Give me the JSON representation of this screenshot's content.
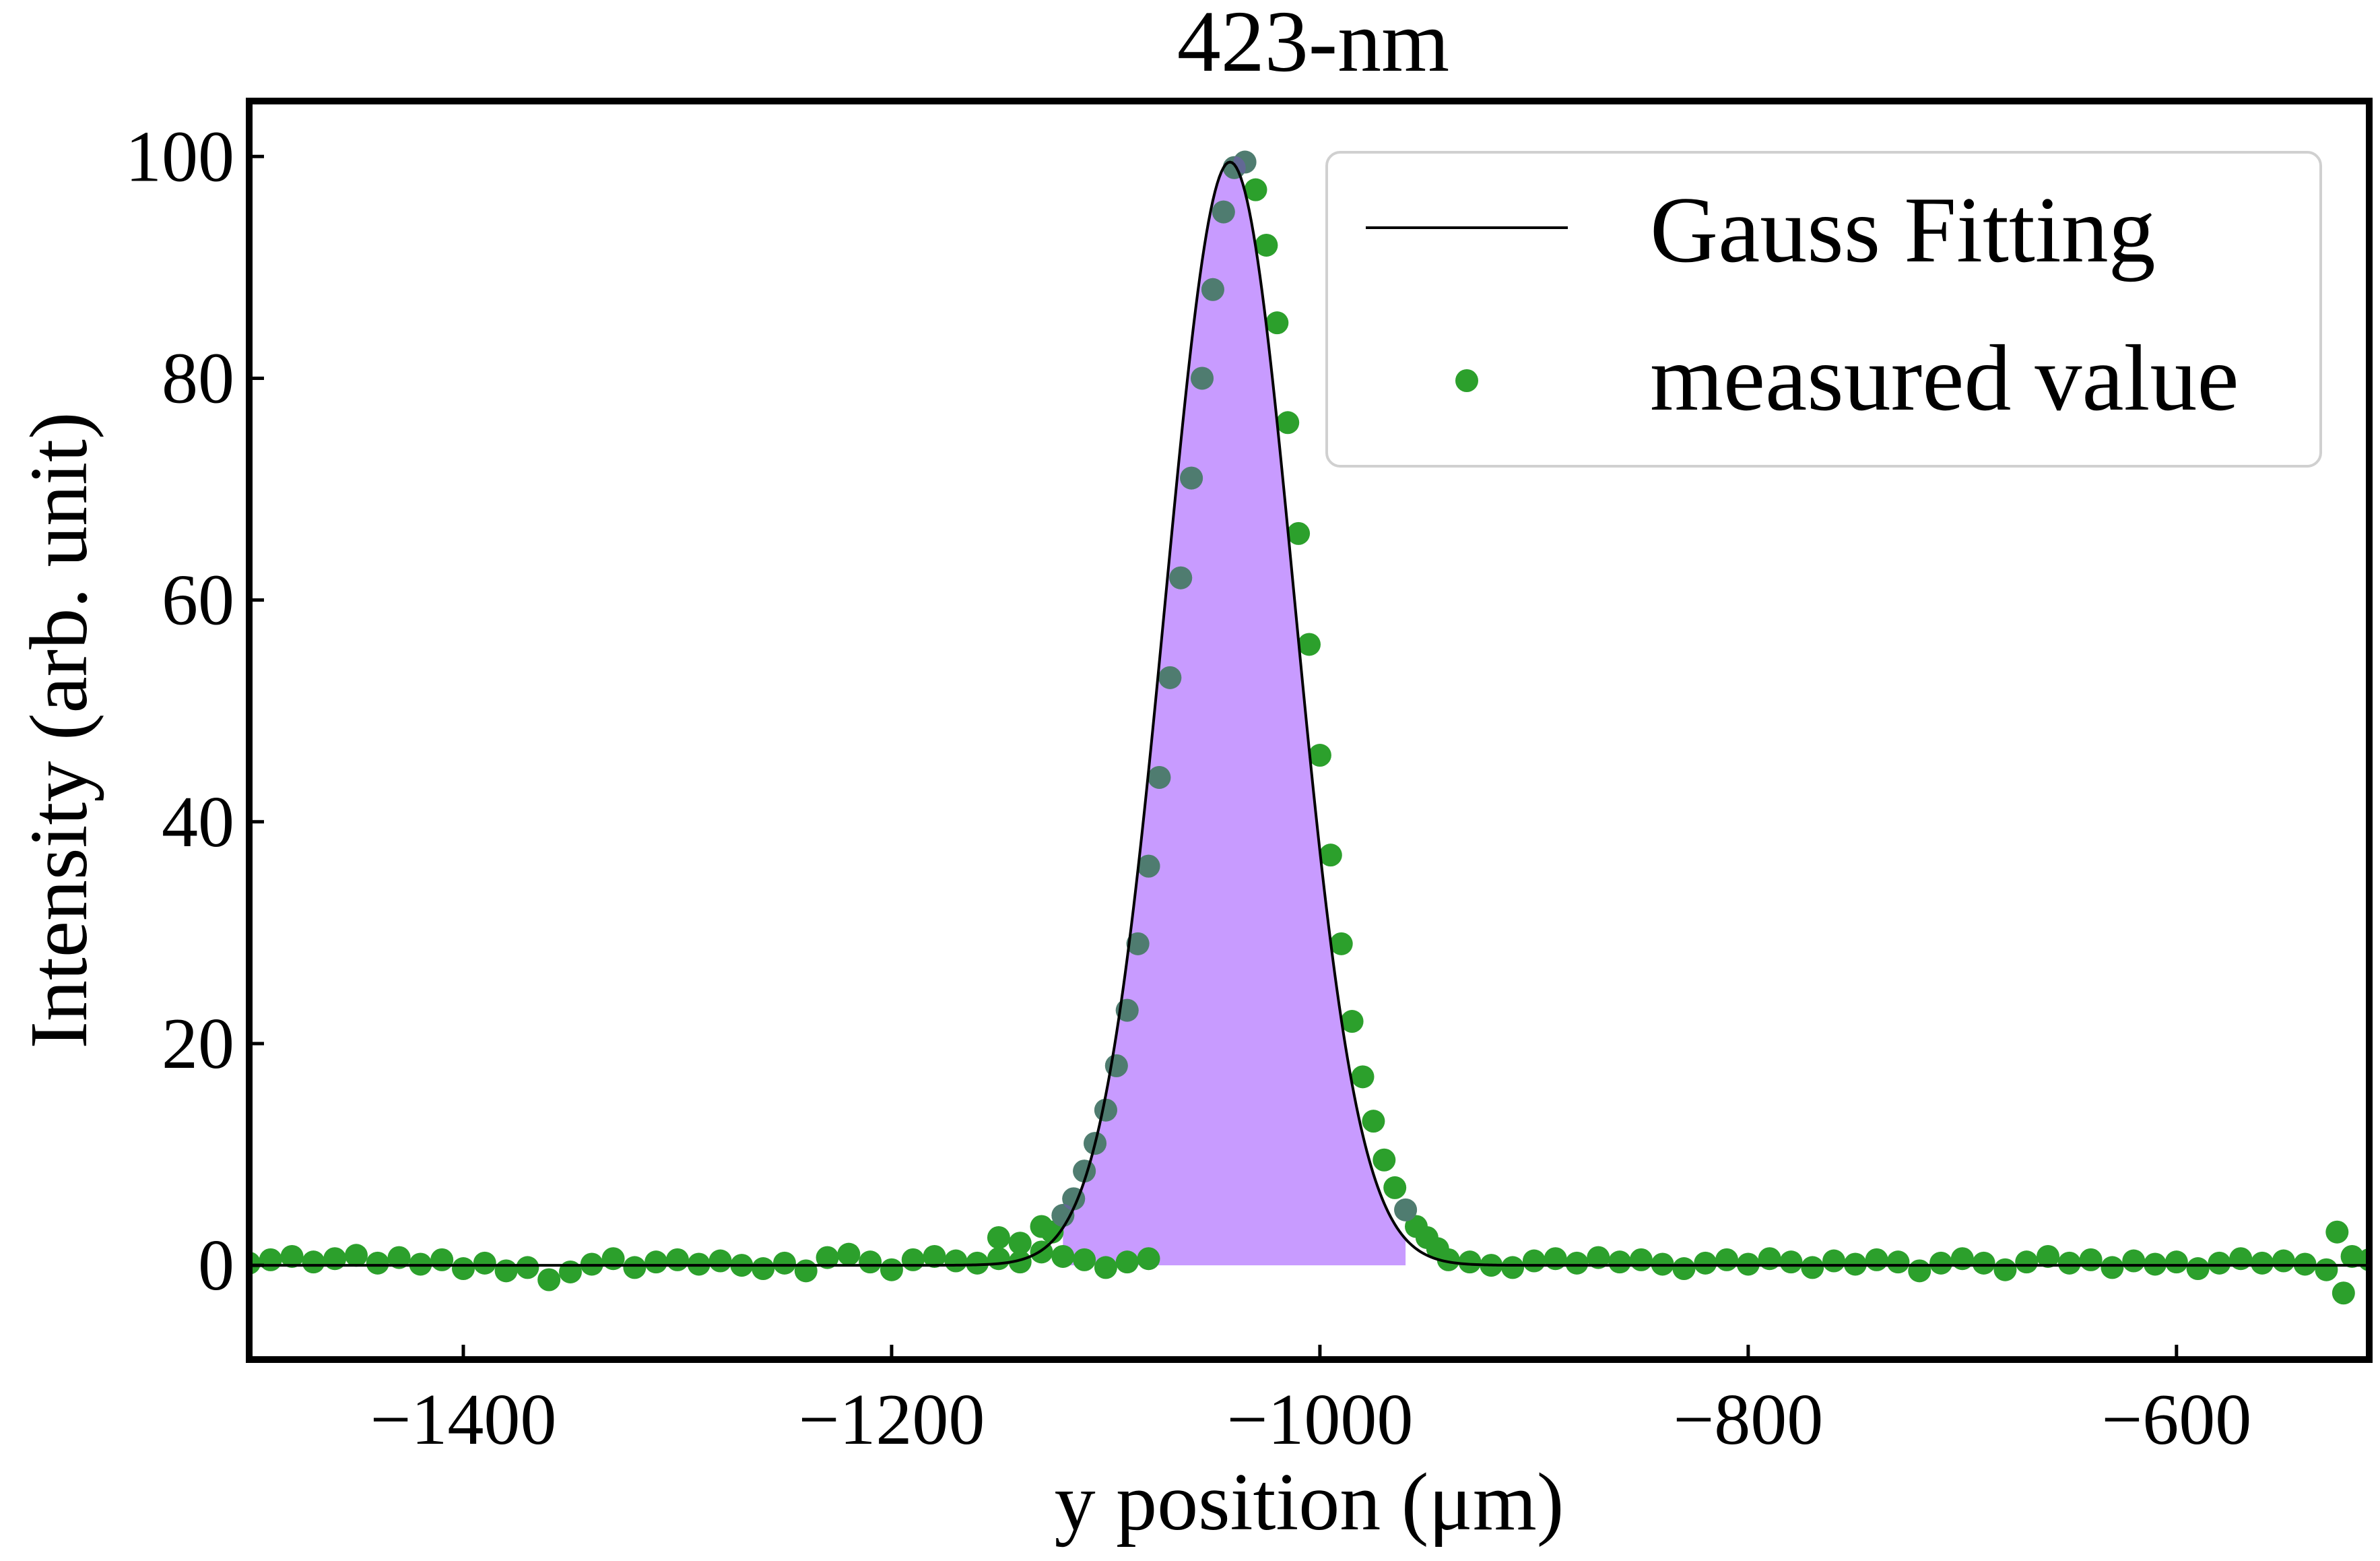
{
  "chart_data": {
    "type": "scatter",
    "title": "423-nm",
    "xlabel": "y position (μm)",
    "ylabel": "Intensity (arb. unit)",
    "xlim": [
      -1500,
      -510
    ],
    "ylim": [
      -8.5,
      105
    ],
    "x_ticks": [
      -1400,
      -1200,
      -1000,
      -800,
      -600
    ],
    "x_tick_labels": [
      "−1400",
      "−1200",
      "−1000",
      "−800",
      "−600"
    ],
    "y_ticks": [
      0,
      20,
      40,
      60,
      80,
      100
    ],
    "y_tick_labels": [
      "0",
      "20",
      "40",
      "60",
      "80",
      "100"
    ],
    "grid": false,
    "legend_position": "top-right",
    "series": [
      {
        "name": "Gauss Fitting",
        "kind": "line",
        "color": "#000000",
        "model": "gaussian",
        "amplitude": 99.5,
        "center": -1042,
        "sigma": 30
      },
      {
        "name": "measured value",
        "kind": "scatter",
        "color": "#2ca02c",
        "points": [
          [
            -1500,
            0.2
          ],
          [
            -1490,
            0.5
          ],
          [
            -1480,
            0.8
          ],
          [
            -1470,
            0.3
          ],
          [
            -1460,
            0.6
          ],
          [
            -1450,
            0.9
          ],
          [
            -1440,
            0.2
          ],
          [
            -1430,
            0.7
          ],
          [
            -1420,
            0.1
          ],
          [
            -1410,
            0.5
          ],
          [
            -1400,
            -0.3
          ],
          [
            -1390,
            0.2
          ],
          [
            -1380,
            -0.5
          ],
          [
            -1370,
            -0.2
          ],
          [
            -1360,
            -1.3
          ],
          [
            -1350,
            -0.6
          ],
          [
            -1340,
            0.1
          ],
          [
            -1330,
            0.6
          ],
          [
            -1320,
            -0.2
          ],
          [
            -1310,
            0.3
          ],
          [
            -1300,
            0.5
          ],
          [
            -1290,
            0.1
          ],
          [
            -1280,
            0.4
          ],
          [
            -1270,
            0.0
          ],
          [
            -1260,
            -0.3
          ],
          [
            -1250,
            0.2
          ],
          [
            -1240,
            -0.5
          ],
          [
            -1230,
            0.7
          ],
          [
            -1220,
            1.0
          ],
          [
            -1210,
            0.3
          ],
          [
            -1200,
            -0.4
          ],
          [
            -1190,
            0.5
          ],
          [
            -1180,
            0.8
          ],
          [
            -1170,
            0.4
          ],
          [
            -1160,
            0.2
          ],
          [
            -1150,
            0.6
          ],
          [
            -1140,
            0.3
          ],
          [
            -1130,
            1.2
          ],
          [
            -1120,
            0.8
          ],
          [
            -1110,
            0.5
          ],
          [
            -1100,
            -0.2
          ],
          [
            -1090,
            0.3
          ],
          [
            -1080,
            0.6
          ],
          [
            -1150,
            2.5
          ],
          [
            -1140,
            2.0
          ],
          [
            -1130,
            3.5
          ],
          [
            -1125,
            3.0
          ],
          [
            -1120,
            4.5
          ],
          [
            -1115,
            6.0
          ],
          [
            -1110,
            8.5
          ],
          [
            -1105,
            11
          ],
          [
            -1100,
            14
          ],
          [
            -1095,
            18
          ],
          [
            -1090,
            23
          ],
          [
            -1085,
            29
          ],
          [
            -1080,
            36
          ],
          [
            -1075,
            44
          ],
          [
            -1070,
            53
          ],
          [
            -1065,
            62
          ],
          [
            -1060,
            71
          ],
          [
            -1055,
            80
          ],
          [
            -1050,
            88
          ],
          [
            -1045,
            95
          ],
          [
            -1040,
            99
          ],
          [
            -1035,
            99.5
          ],
          [
            -1030,
            97
          ],
          [
            -1025,
            92
          ],
          [
            -1020,
            85
          ],
          [
            -1015,
            76
          ],
          [
            -1010,
            66
          ],
          [
            -1005,
            56
          ],
          [
            -1000,
            46
          ],
          [
            -995,
            37
          ],
          [
            -990,
            29
          ],
          [
            -985,
            22
          ],
          [
            -980,
            17
          ],
          [
            -975,
            13
          ],
          [
            -970,
            9.5
          ],
          [
            -965,
            7
          ],
          [
            -960,
            5
          ],
          [
            -955,
            3.5
          ],
          [
            -950,
            2.5
          ],
          [
            -945,
            1.5
          ],
          [
            -940,
            0.5
          ],
          [
            -930,
            0.3
          ],
          [
            -920,
            0.0
          ],
          [
            -910,
            -0.2
          ],
          [
            -900,
            0.4
          ],
          [
            -890,
            0.6
          ],
          [
            -880,
            0.2
          ],
          [
            -870,
            0.7
          ],
          [
            -860,
            0.3
          ],
          [
            -850,
            0.5
          ],
          [
            -840,
            0.1
          ],
          [
            -830,
            -0.3
          ],
          [
            -820,
            0.2
          ],
          [
            -810,
            0.5
          ],
          [
            -800,
            0.1
          ],
          [
            -790,
            0.6
          ],
          [
            -780,
            0.3
          ],
          [
            -770,
            -0.2
          ],
          [
            -760,
            0.4
          ],
          [
            -750,
            0.1
          ],
          [
            -740,
            0.5
          ],
          [
            -730,
            0.3
          ],
          [
            -720,
            -0.5
          ],
          [
            -710,
            0.2
          ],
          [
            -700,
            0.6
          ],
          [
            -690,
            0.2
          ],
          [
            -680,
            -0.4
          ],
          [
            -670,
            0.3
          ],
          [
            -660,
            0.8
          ],
          [
            -650,
            0.2
          ],
          [
            -640,
            0.5
          ],
          [
            -630,
            -0.2
          ],
          [
            -620,
            0.4
          ],
          [
            -610,
            0.1
          ],
          [
            -600,
            0.3
          ],
          [
            -590,
            -0.3
          ],
          [
            -580,
            0.2
          ],
          [
            -570,
            0.6
          ],
          [
            -560,
            0.2
          ],
          [
            -550,
            0.4
          ],
          [
            -540,
            0.1
          ],
          [
            -530,
            -0.4
          ],
          [
            -525,
            3.0
          ],
          [
            -522,
            -2.5
          ],
          [
            -518,
            0.8
          ],
          [
            -510,
            0.5
          ]
        ]
      }
    ],
    "fill": {
      "color": "#c89bff",
      "under": "Gauss Fitting",
      "x_range": [
        -1120,
        -960
      ]
    }
  }
}
